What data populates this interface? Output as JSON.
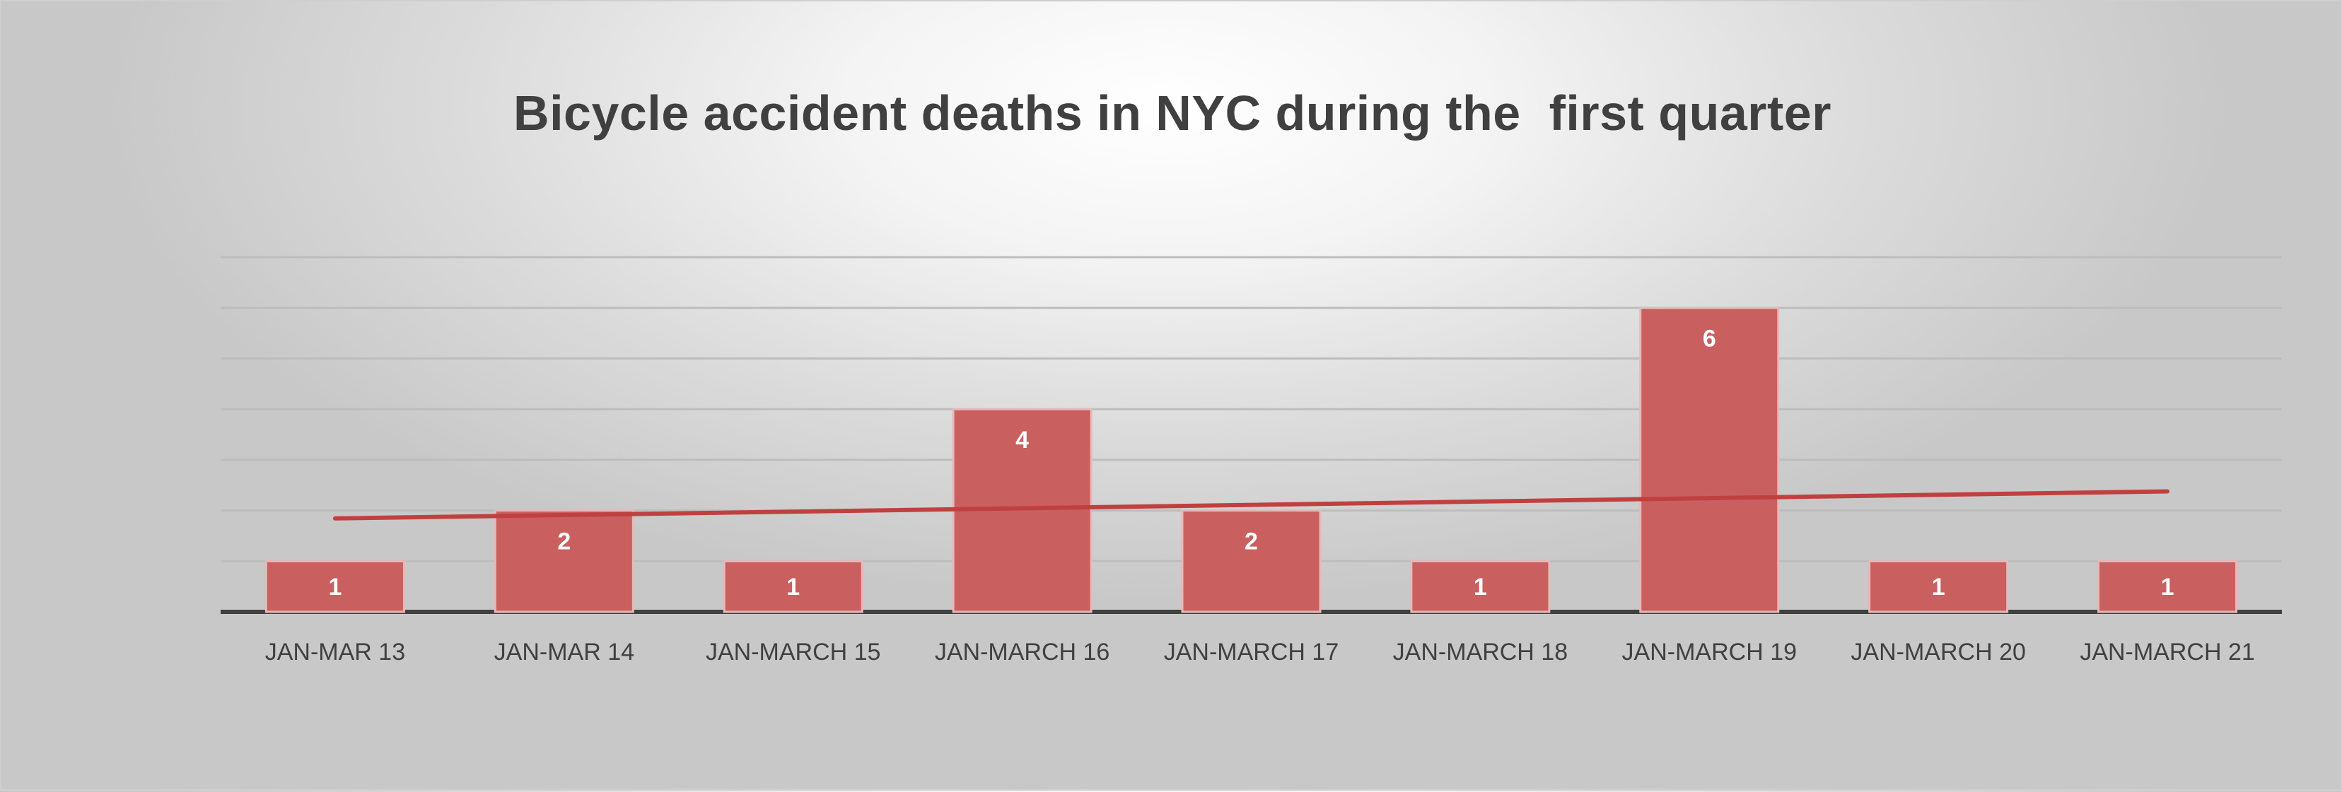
{
  "chart_data": {
    "type": "bar",
    "title": "Bicycle accident deaths in NYC during the  first quarter",
    "categories": [
      "JAN-MAR 13",
      "JAN-MAR 14",
      "JAN-MARCH 15",
      "JAN-MARCH 16",
      "JAN-MARCH 17",
      "JAN-MARCH 18",
      "JAN-MARCH 19",
      "JAN-MARCH 20",
      "JAN-MARCH 21"
    ],
    "series": [
      {
        "values": [
          1,
          2,
          1,
          4,
          2,
          1,
          6,
          1,
          1
        ]
      }
    ],
    "trendline": {
      "type": "linear",
      "series_index": 0
    },
    "ylim": [
      0,
      7
    ],
    "y_axis_labels_shown": false,
    "grid": true,
    "legend": "none",
    "colors": {
      "bar_fill": "#c9605f",
      "bar_stroke": "#e8b8b8",
      "trendline": "#c0403f",
      "gridline": "#bdbdbd",
      "axis": "#404040"
    }
  }
}
